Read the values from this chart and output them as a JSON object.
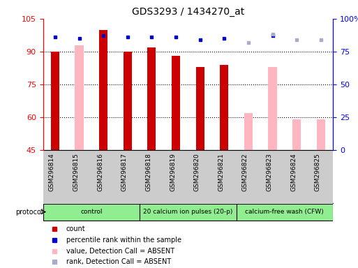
{
  "title": "GDS3293 / 1434270_at",
  "samples": [
    "GSM296814",
    "GSM296815",
    "GSM296816",
    "GSM296817",
    "GSM296818",
    "GSM296819",
    "GSM296820",
    "GSM296821",
    "GSM296822",
    "GSM296823",
    "GSM296824",
    "GSM296825"
  ],
  "count_values": [
    90.0,
    null,
    100.0,
    90.0,
    92.0,
    88.0,
    83.0,
    84.0,
    null,
    null,
    null,
    null
  ],
  "pink_values": [
    null,
    93.0,
    null,
    null,
    null,
    null,
    null,
    null,
    62.0,
    83.0,
    59.0,
    59.0
  ],
  "blue_square_values": [
    86,
    85,
    87,
    86,
    86,
    86,
    84,
    85,
    null,
    87,
    null,
    null
  ],
  "light_blue_values": [
    null,
    null,
    null,
    null,
    null,
    null,
    null,
    null,
    82,
    88,
    84,
    84
  ],
  "ylim": [
    45,
    105
  ],
  "yticks": [
    45,
    60,
    75,
    90,
    105
  ],
  "right_ylim": [
    0,
    100
  ],
  "right_yticks": [
    0,
    25,
    50,
    75,
    100
  ],
  "proto_bounds": [
    {
      "start": 0,
      "end": 3,
      "label": "control"
    },
    {
      "start": 4,
      "end": 7,
      "label": "20 calcium ion pulses (20-p)"
    },
    {
      "start": 8,
      "end": 11,
      "label": "calcium-free wash (CFW)"
    }
  ],
  "bar_color_red": "#cc0000",
  "bar_color_pink": "#ffb6c1",
  "blue_square_color": "#0000cc",
  "light_blue_color": "#aaaacc",
  "bar_width": 0.35,
  "legend_items": [
    {
      "color": "#cc0000",
      "label": "count"
    },
    {
      "color": "#0000cc",
      "label": "percentile rank within the sample"
    },
    {
      "color": "#ffb6c1",
      "label": "value, Detection Call = ABSENT"
    },
    {
      "color": "#aaaacc",
      "label": "rank, Detection Call = ABSENT"
    }
  ],
  "proto_color": "#90ee90",
  "tick_bg_color": "#cccccc"
}
